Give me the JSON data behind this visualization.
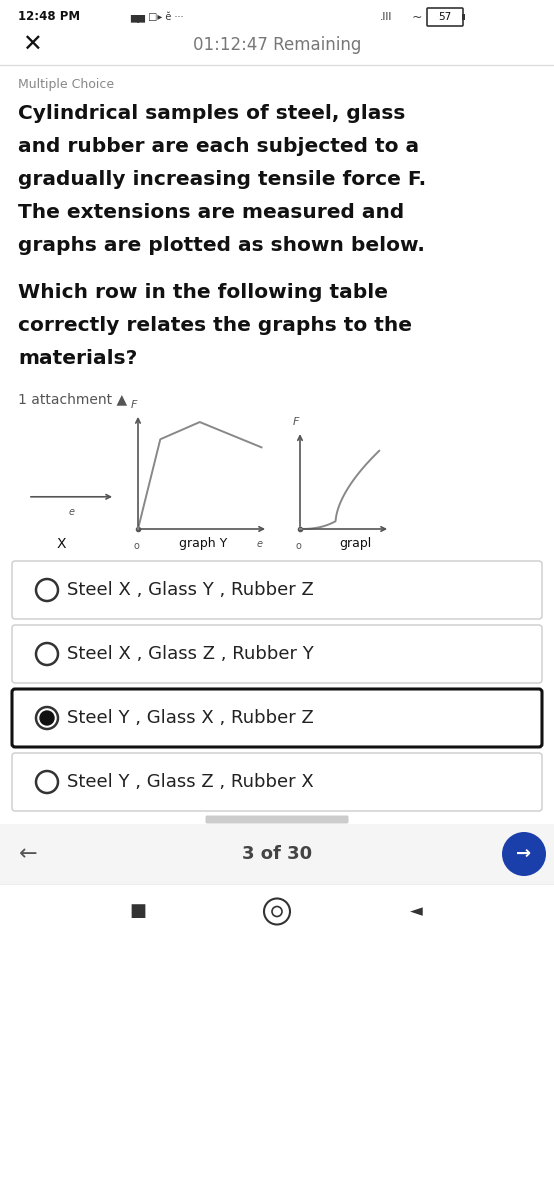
{
  "bg_color": "#ffffff",
  "status_time": "12:48 PM",
  "status_right": "57",
  "timer_text": "01:12:47 Remaining",
  "question_type": "Multiple Choice",
  "question_lines_1": [
    "Cylindrical samples of steel, glass",
    "and rubber are each subjected to a",
    "gradually increasing tensile force F.",
    "The extensions are measured and",
    "graphs are plotted as shown below."
  ],
  "question_lines_2": [
    "Which row in the following table",
    "correctly relates the graphs to the",
    "materials?"
  ],
  "attachment_text": "1 attachment ▲",
  "graph_x_label": "X",
  "graph_y_label": "graph Y",
  "graph_z_label": "grapl",
  "options": [
    "Steel X , Glass Y , Rubber Z",
    "Steel X , Glass Z , Rubber Y",
    "Steel Y , Glass X , Rubber Z",
    "Steel Y , Glass Z , Rubber X"
  ],
  "selected_option": 2,
  "nav_text": "3 of 30",
  "nav_arrow_bg": "#1a3faa",
  "line_color": "#888888",
  "axis_color": "#555555",
  "text_dark": "#111111",
  "text_mid": "#555555",
  "text_light": "#888888",
  "border_selected": "#111111",
  "border_normal": "#cccccc",
  "option_bg": "#ffffff"
}
